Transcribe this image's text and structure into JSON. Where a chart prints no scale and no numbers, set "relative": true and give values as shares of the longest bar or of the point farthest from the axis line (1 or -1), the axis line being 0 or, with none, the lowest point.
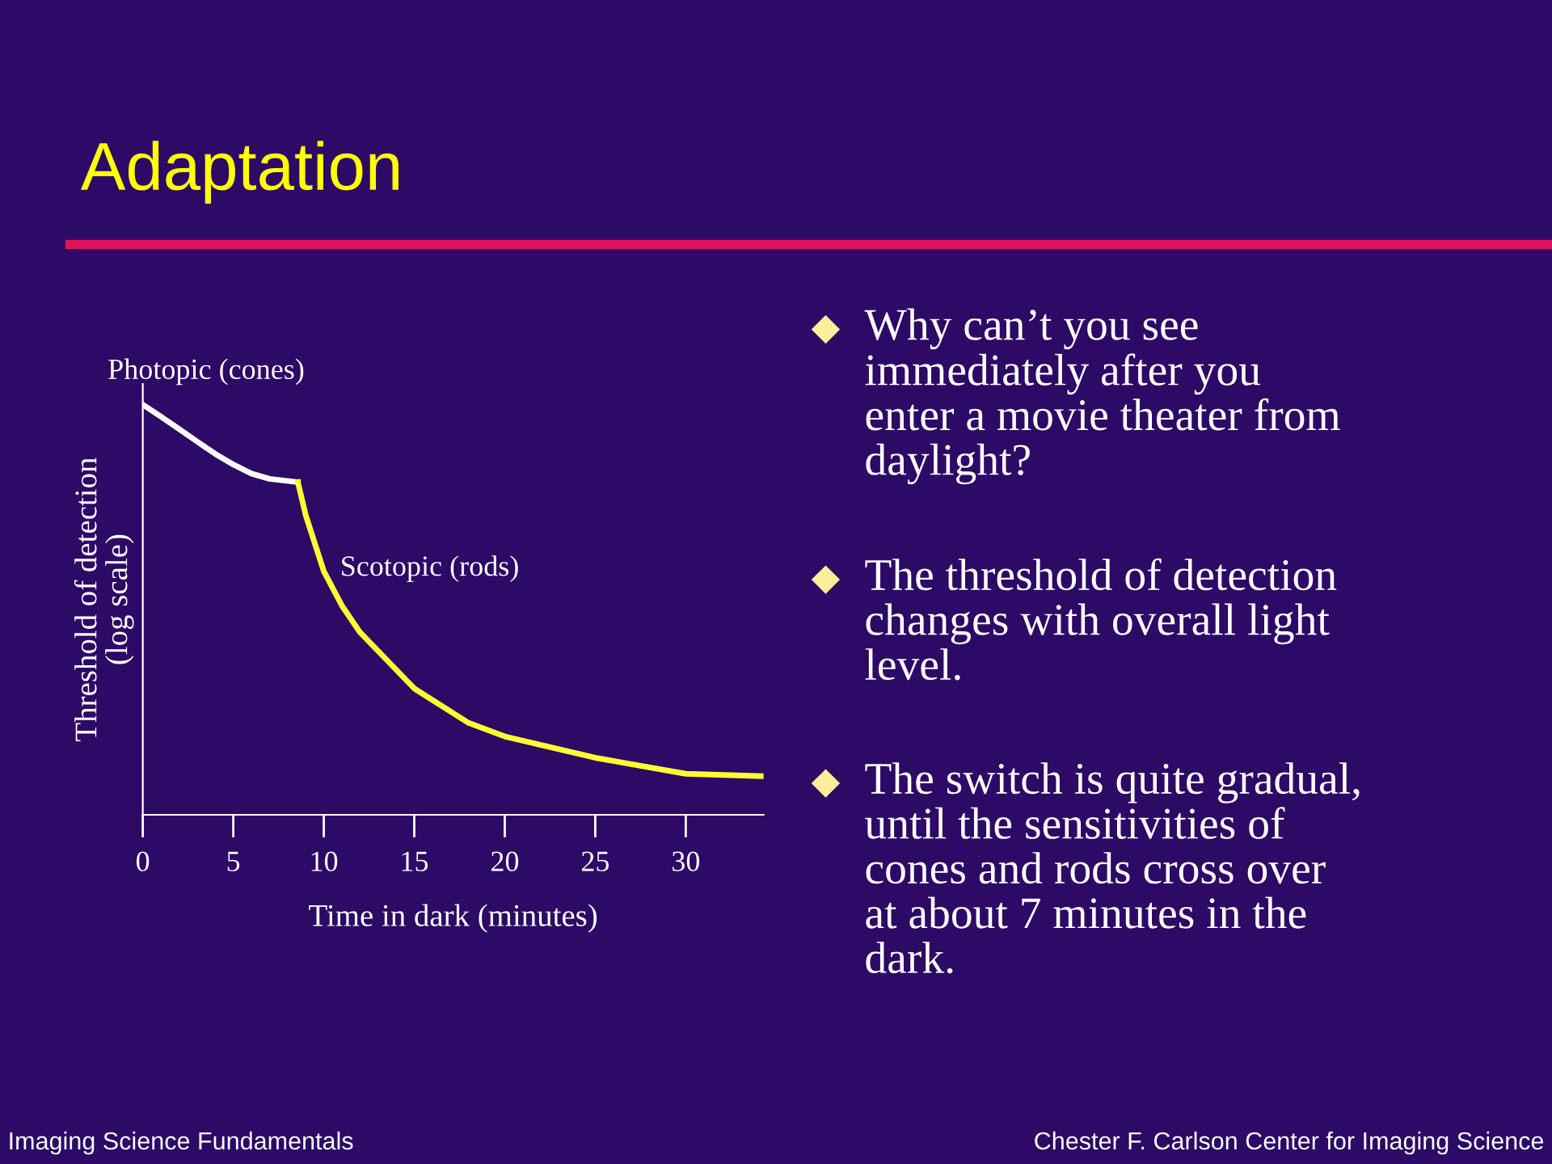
{
  "chart_data": {
    "type": "line",
    "title": "Adaptation",
    "xlabel": "Time in dark (minutes)",
    "ylabel": "Threshold of detection\n(log scale)",
    "relative": true,
    "xlim": [
      0,
      34.3
    ],
    "xticks": [
      0,
      5,
      10,
      15,
      20,
      25,
      30
    ],
    "grid": false,
    "legend": false,
    "marker": "none",
    "line_style": "solid",
    "series": [
      {
        "name": "Photopic (cones)",
        "color": "#ffffff",
        "x": [
          0,
          1,
          2,
          3,
          4,
          5,
          6,
          7,
          8.57
        ],
        "values": [
          1.0,
          0.971,
          0.941,
          0.91,
          0.88,
          0.854,
          0.832,
          0.819,
          0.811
        ]
      },
      {
        "name": "Scotopic (rods)",
        "color": "#ffff33",
        "x": [
          8.57,
          9,
          10,
          11,
          12,
          15,
          18,
          20,
          25,
          30,
          34.3
        ],
        "values": [
          0.811,
          0.731,
          0.594,
          0.51,
          0.445,
          0.308,
          0.224,
          0.191,
          0.139,
          0.1,
          0.094
        ]
      }
    ],
    "annotations": [
      "Why can’t you see\nimmediately after you\nenter a movie theater from\ndaylight?",
      "The threshold of detection\nchanges with overall light\nlevel.",
      "The switch is quite gradual,\nuntil the sensitivities of\ncones and rods cross over\nat about 7 minutes in the\ndark.",
      "Imaging Science Fundamentals",
      "Chester F. Carlson Center for Imaging Science"
    ]
  }
}
